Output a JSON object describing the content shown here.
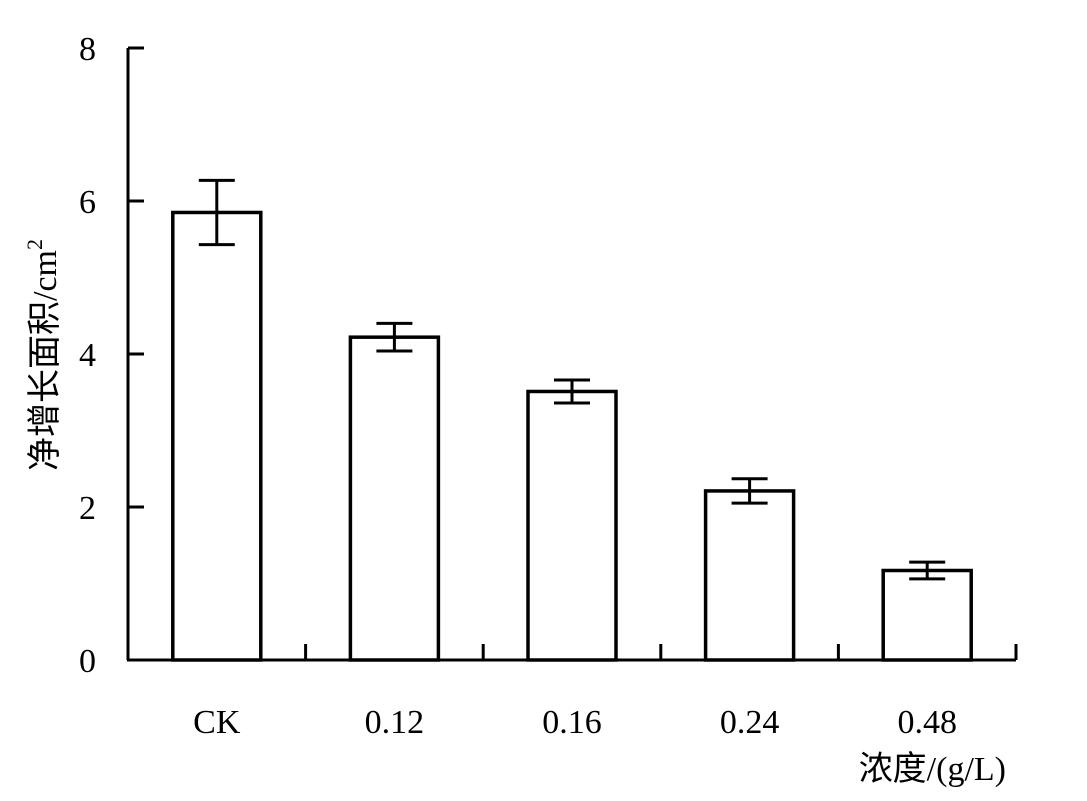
{
  "chart_data": {
    "type": "bar",
    "categories": [
      "CK",
      "0.12",
      "0.16",
      "0.24",
      "0.48"
    ],
    "values": [
      5.85,
      4.22,
      3.51,
      2.21,
      1.17
    ],
    "errors": [
      0.42,
      0.18,
      0.15,
      0.16,
      0.11
    ],
    "ylabel": "净增长面积/cm",
    "ylabel_sup": "2",
    "xlabel": "浓度/(g/L)",
    "ylim": [
      0,
      8
    ],
    "yticks": [
      "0",
      "2",
      "4",
      "6",
      "8"
    ],
    "grid": false,
    "legend": "none",
    "colors": {
      "bar_fill": "#ffffff",
      "stroke": "#000000"
    }
  }
}
